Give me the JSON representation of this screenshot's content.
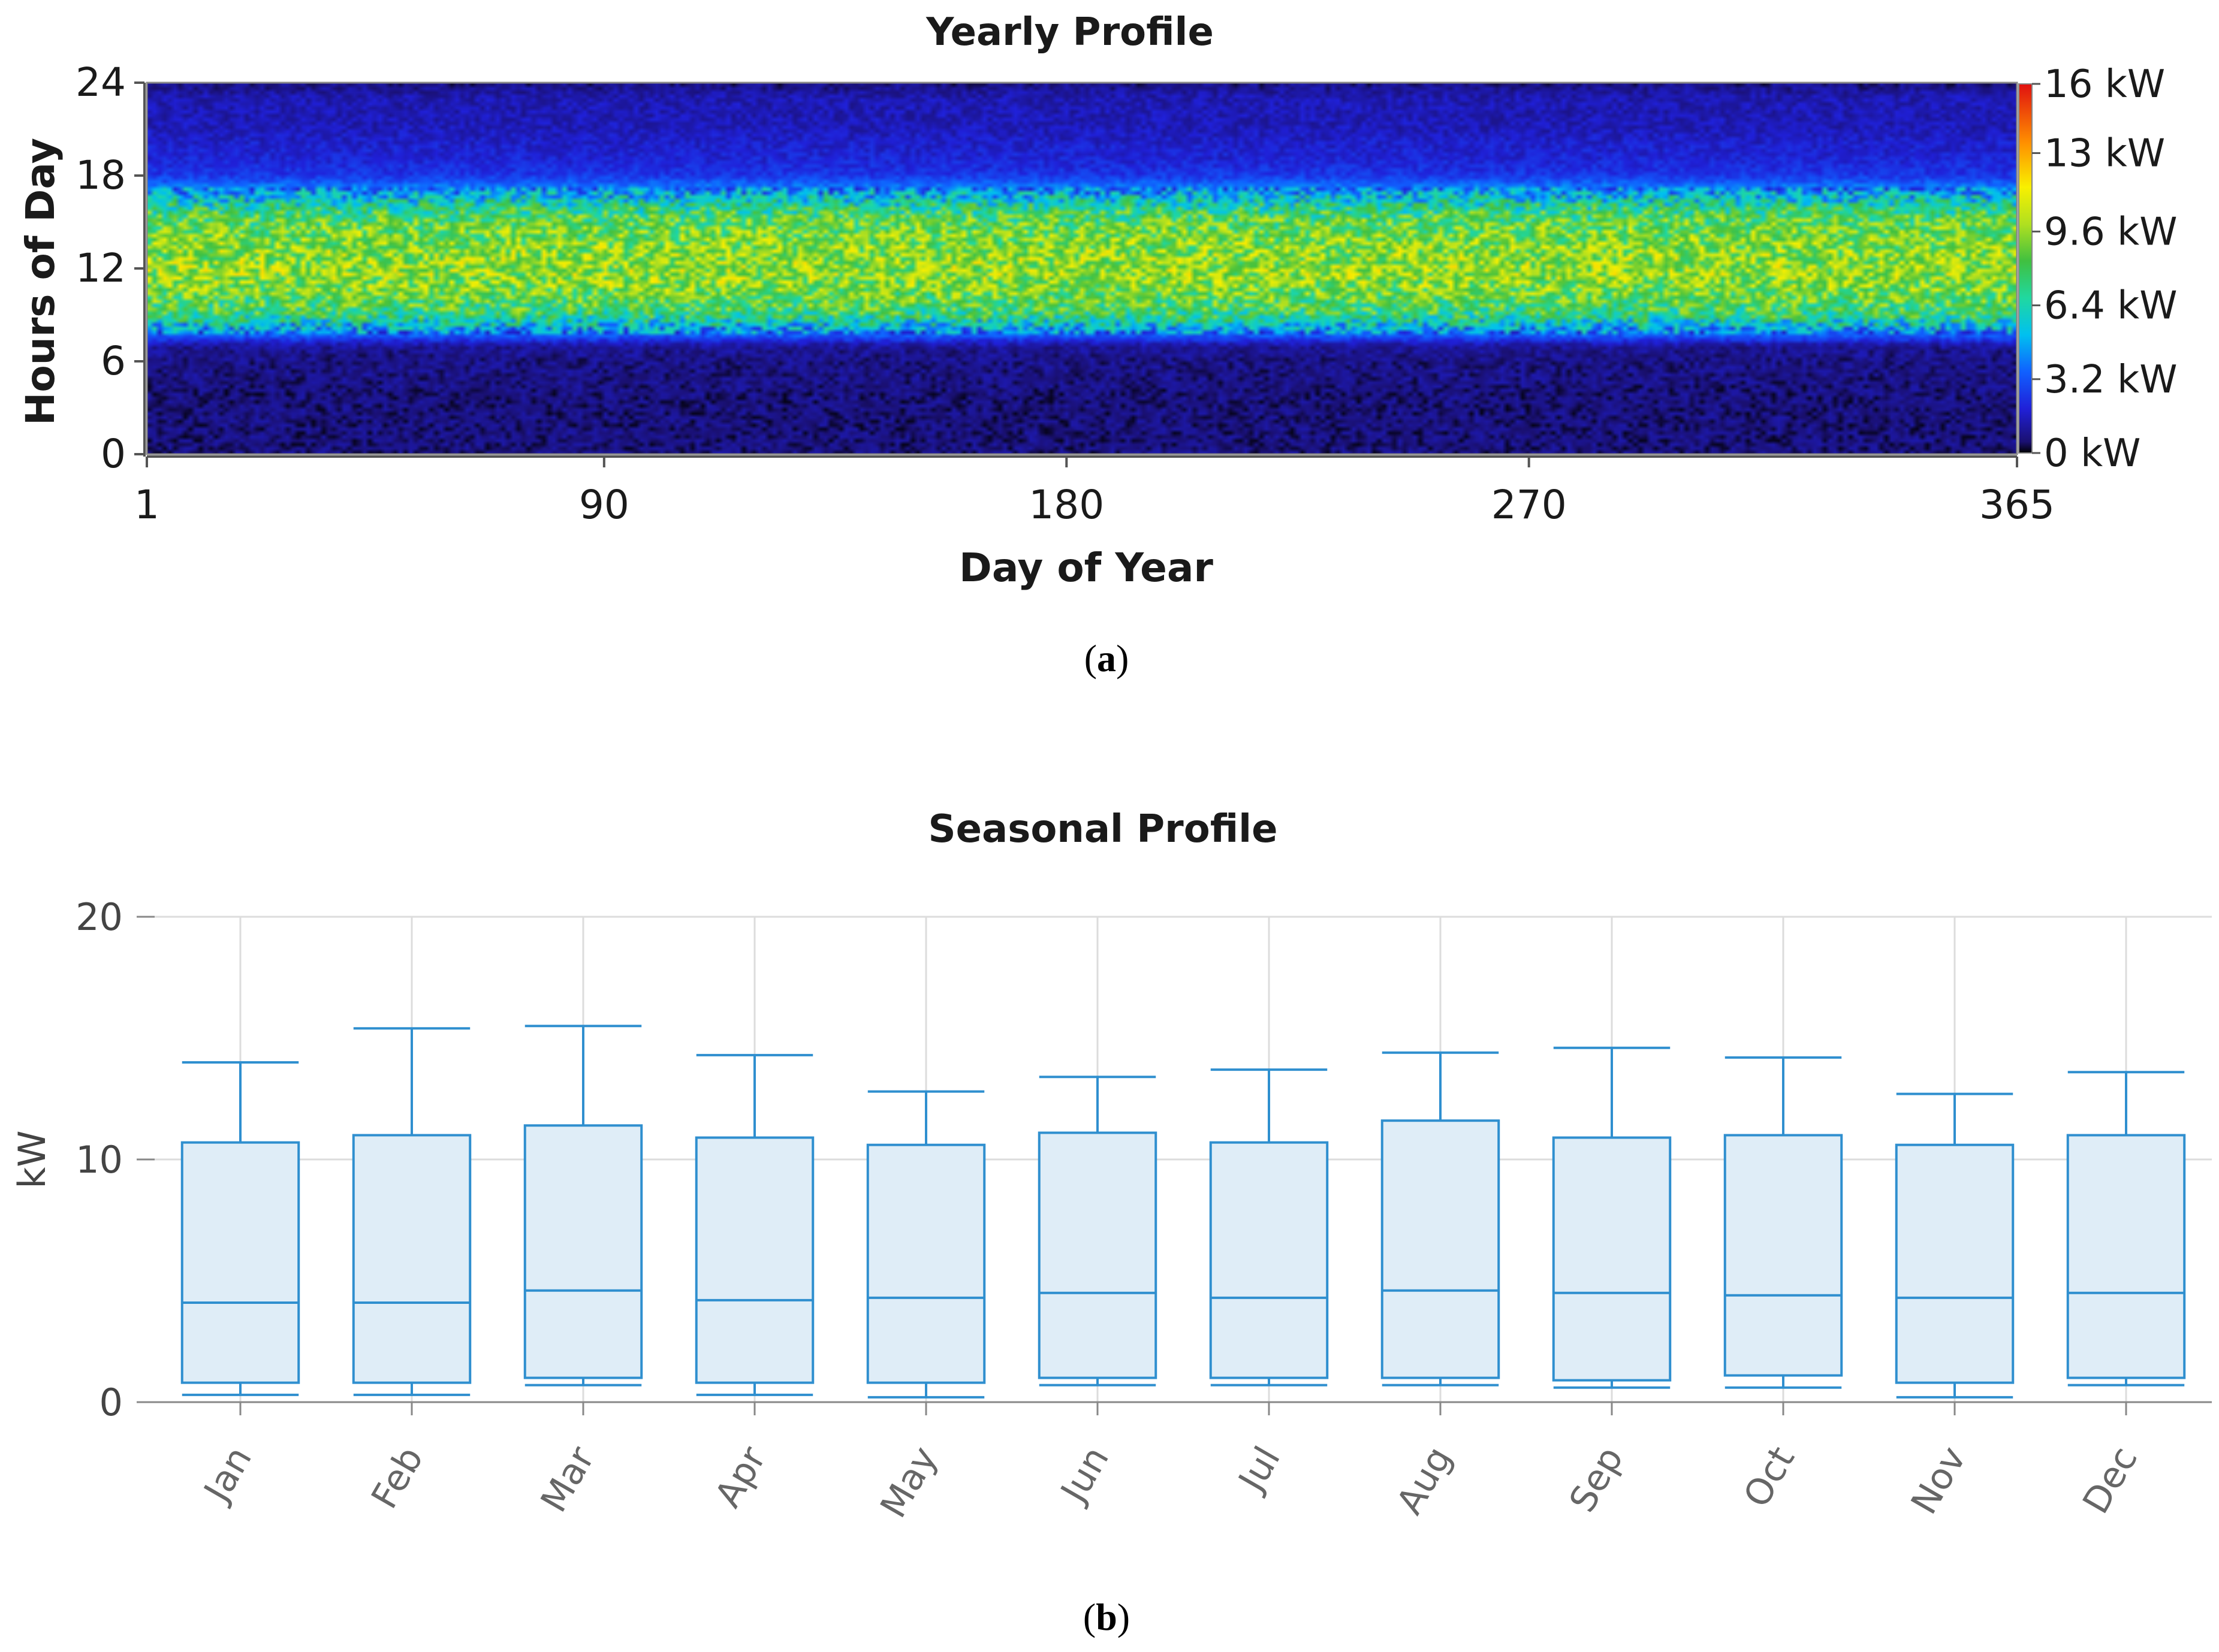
{
  "chart_data": [
    {
      "type": "heatmap",
      "title": "Yearly Profile",
      "xlabel": "Day of Year",
      "ylabel": "Hours of Day",
      "xlim": [
        1,
        365
      ],
      "ylim": [
        0,
        24
      ],
      "x_ticks": [
        1,
        90,
        180,
        270,
        365
      ],
      "x_tick_labels": [
        "1",
        "90",
        "180",
        "270",
        "365"
      ],
      "y_ticks": [
        0,
        6,
        12,
        18,
        24
      ],
      "y_tick_labels": [
        "0",
        "6",
        "12",
        "18",
        "24"
      ],
      "colorbar": {
        "range": [
          0,
          16
        ],
        "unit": "kW",
        "tick_values": [
          0,
          3.2,
          6.4,
          9.6,
          13,
          16
        ],
        "tick_labels": [
          "0 kW",
          "3.2 kW",
          "6.4 kW",
          "9.6 kW",
          "13 kW",
          "16 kW"
        ]
      },
      "hourly_profile_kw": [
        0.7,
        0.7,
        0.7,
        0.7,
        0.7,
        0.8,
        0.8,
        1.0,
        4.5,
        7.5,
        8.5,
        9.3,
        9.6,
        9.4,
        9.0,
        8.5,
        7.0,
        4.5,
        2.5,
        2.0,
        1.8,
        1.5,
        1.4,
        1.4
      ],
      "caption": "(a)"
    },
    {
      "type": "box",
      "title": "Seasonal Profile",
      "xlabel": "",
      "ylabel": "kW",
      "ylim": [
        0,
        20
      ],
      "y_ticks": [
        0,
        10,
        20
      ],
      "y_tick_labels": [
        "0",
        "10",
        "20"
      ],
      "grid": true,
      "categories": [
        "Jan",
        "Feb",
        "Mar",
        "Apr",
        "May",
        "Jun",
        "Jul",
        "Aug",
        "Sep",
        "Oct",
        "Nov",
        "Dec"
      ],
      "boxes": [
        {
          "min": 0.3,
          "q1": 0.8,
          "median": 4.1,
          "q3": 10.7,
          "max": 14.0
        },
        {
          "min": 0.3,
          "q1": 0.8,
          "median": 4.1,
          "q3": 11.0,
          "max": 15.4
        },
        {
          "min": 0.7,
          "q1": 1.0,
          "median": 4.6,
          "q3": 11.4,
          "max": 15.5
        },
        {
          "min": 0.3,
          "q1": 0.8,
          "median": 4.2,
          "q3": 10.9,
          "max": 14.3
        },
        {
          "min": 0.2,
          "q1": 0.8,
          "median": 4.3,
          "q3": 10.6,
          "max": 12.8
        },
        {
          "min": 0.7,
          "q1": 1.0,
          "median": 4.5,
          "q3": 11.1,
          "max": 13.4
        },
        {
          "min": 0.7,
          "q1": 1.0,
          "median": 4.3,
          "q3": 10.7,
          "max": 13.7
        },
        {
          "min": 0.7,
          "q1": 1.0,
          "median": 4.6,
          "q3": 11.6,
          "max": 14.4
        },
        {
          "min": 0.6,
          "q1": 0.9,
          "median": 4.5,
          "q3": 10.9,
          "max": 14.6
        },
        {
          "min": 0.6,
          "q1": 1.1,
          "median": 4.4,
          "q3": 11.0,
          "max": 14.2
        },
        {
          "min": 0.2,
          "q1": 0.8,
          "median": 4.3,
          "q3": 10.6,
          "max": 12.7
        },
        {
          "min": 0.7,
          "q1": 1.0,
          "median": 4.5,
          "q3": 11.0,
          "max": 13.6
        }
      ],
      "box_color": "#2f8fcf",
      "box_fill": "#dfedf7",
      "caption": "(b)"
    }
  ]
}
